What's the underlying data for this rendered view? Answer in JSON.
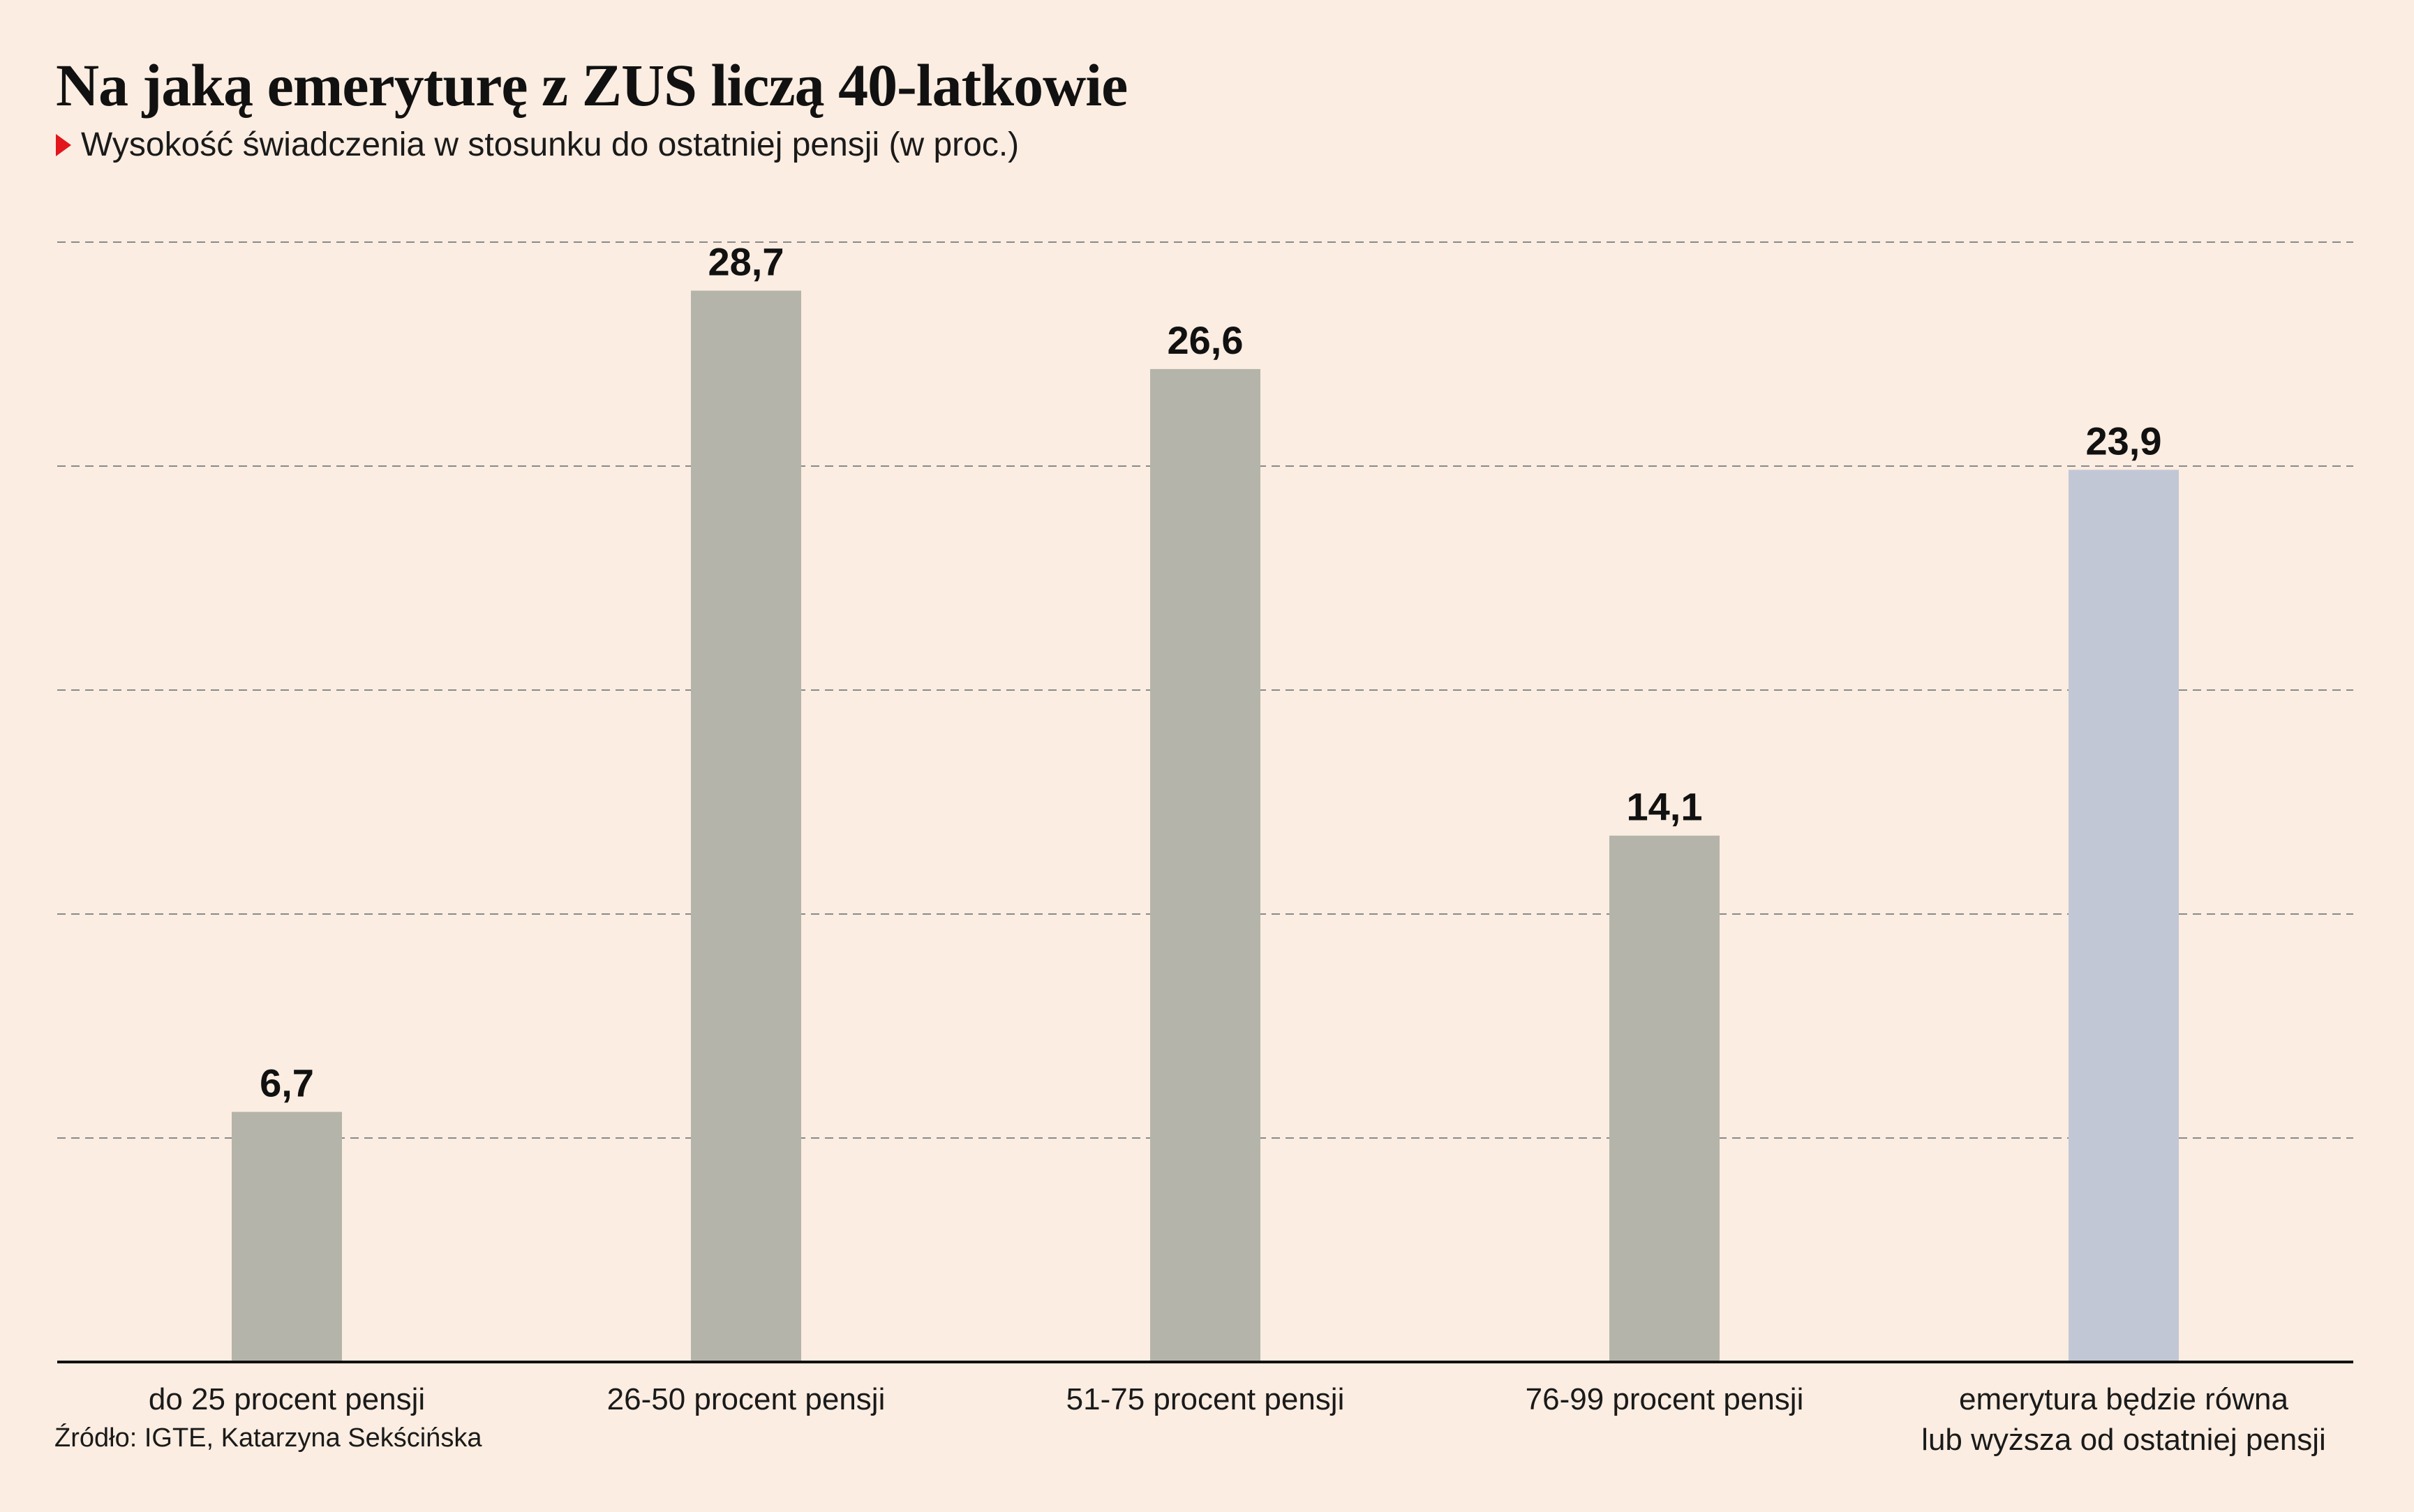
{
  "title": "Na jaką emeryturę z ZUS liczą 40-latkowie",
  "subtitle": "Wysokość świadczenia w stosunku do ostatniej pensji (w proc.)",
  "source": "Źródło: IGTE, Katarzyna Sekścińska",
  "colors": {
    "background": "#fbede1",
    "bar": "#b5b4aa",
    "highlight_bar": "#c2c7d6",
    "marker": "#e3161b",
    "grid": "#8a8a8a",
    "axis": "#111111"
  },
  "chart_data": {
    "type": "bar",
    "title": "Na jaką emeryturę z ZUS liczą 40-latkowie",
    "subtitle": "Wysokość świadczenia w stosunku do ostatniej pensji (w proc.)",
    "categories": [
      "do 25 procent pensji",
      "26-50 procent pensji",
      "51-75 procent pensji",
      "76-99 procent pensji",
      "emerytura będzie równa lub wyższa od ostatniej pensji"
    ],
    "category_lines": [
      [
        "do 25 procent pensji"
      ],
      [
        "26-50 procent pensji"
      ],
      [
        "51-75 procent pensji"
      ],
      [
        "76-99 procent pensji"
      ],
      [
        "emerytura będzie równa",
        "lub wyższa od ostatniej pensji"
      ]
    ],
    "values": [
      6.7,
      28.7,
      26.6,
      14.1,
      23.9
    ],
    "value_labels": [
      "6,7",
      "28,7",
      "26,6",
      "14,1",
      "23,9"
    ],
    "highlight_index": 4,
    "ylim": [
      0,
      30
    ],
    "gridlines": [
      6,
      12,
      18,
      24,
      30
    ],
    "grid": true,
    "legend": "none",
    "xlabel": "",
    "ylabel": ""
  }
}
